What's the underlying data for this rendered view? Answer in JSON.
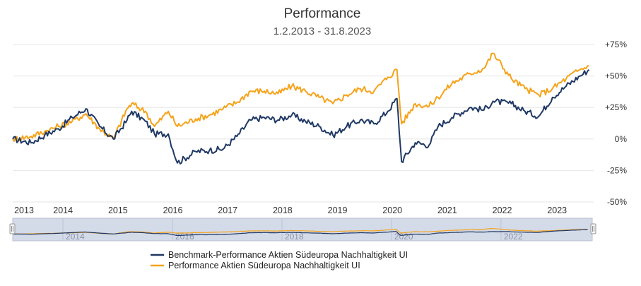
{
  "chart_data": {
    "type": "line",
    "title": "Performance",
    "subtitle": "1.2.2013 - 31.8.2023",
    "xlabel": "",
    "ylabel": "",
    "ylim": [
      -50,
      75
    ],
    "y_ticks": [
      "+75%",
      "+50%",
      "+25%",
      "0%",
      "-25%",
      "-50%"
    ],
    "y_tick_values": [
      75,
      50,
      25,
      0,
      -25,
      -50
    ],
    "x_ticks": [
      "2013",
      "2014",
      "2015",
      "2016",
      "2017",
      "2018",
      "2019",
      "2020",
      "2021",
      "2022",
      "2023"
    ],
    "navigator_ticks": [
      "2014",
      "2016",
      "2018",
      "2020",
      "2022"
    ],
    "grid": "horizontal",
    "legend_position": "bottom",
    "x": [
      "2013-02",
      "2013-06",
      "2013-09",
      "2013-12",
      "2014-03",
      "2014-06",
      "2014-09",
      "2014-12",
      "2015-03",
      "2015-04",
      "2015-07",
      "2015-09",
      "2015-12",
      "2016-02",
      "2016-06",
      "2016-09",
      "2016-12",
      "2017-03",
      "2017-06",
      "2017-09",
      "2017-12",
      "2018-03",
      "2018-06",
      "2018-09",
      "2018-12",
      "2019-03",
      "2019-06",
      "2019-09",
      "2019-12",
      "2020-02",
      "2020-03",
      "2020-06",
      "2020-09",
      "2020-11",
      "2021-02",
      "2021-06",
      "2021-09",
      "2021-11",
      "2022-03",
      "2022-06",
      "2022-09",
      "2022-12",
      "2023-03",
      "2023-06",
      "2023-08"
    ],
    "series": [
      {
        "name": "Benchmark-Performance Aktien Südeuropa Nachhaltigkeit UI",
        "color": "#1f3864",
        "values": [
          0,
          -3,
          3,
          8,
          17,
          24,
          10,
          0,
          15,
          22,
          14,
          4,
          4,
          -19,
          -10,
          -9,
          -8,
          2,
          15,
          17,
          15,
          19,
          14,
          10,
          3,
          10,
          15,
          12,
          22,
          32,
          -18,
          -3,
          -5,
          10,
          17,
          25,
          23,
          30,
          28,
          22,
          18,
          33,
          42,
          50,
          55
        ]
      },
      {
        "name": "Performance Aktien Südeuropa Nachhaltigkeit UI",
        "color": "#f5a31a",
        "values": [
          0,
          2,
          6,
          10,
          14,
          20,
          8,
          0,
          24,
          28,
          22,
          10,
          22,
          10,
          16,
          19,
          24,
          29,
          38,
          38,
          36,
          42,
          38,
          33,
          28,
          35,
          40,
          38,
          49,
          55,
          12,
          28,
          26,
          33,
          44,
          52,
          56,
          68,
          48,
          40,
          35,
          40,
          48,
          55,
          58
        ]
      }
    ]
  }
}
